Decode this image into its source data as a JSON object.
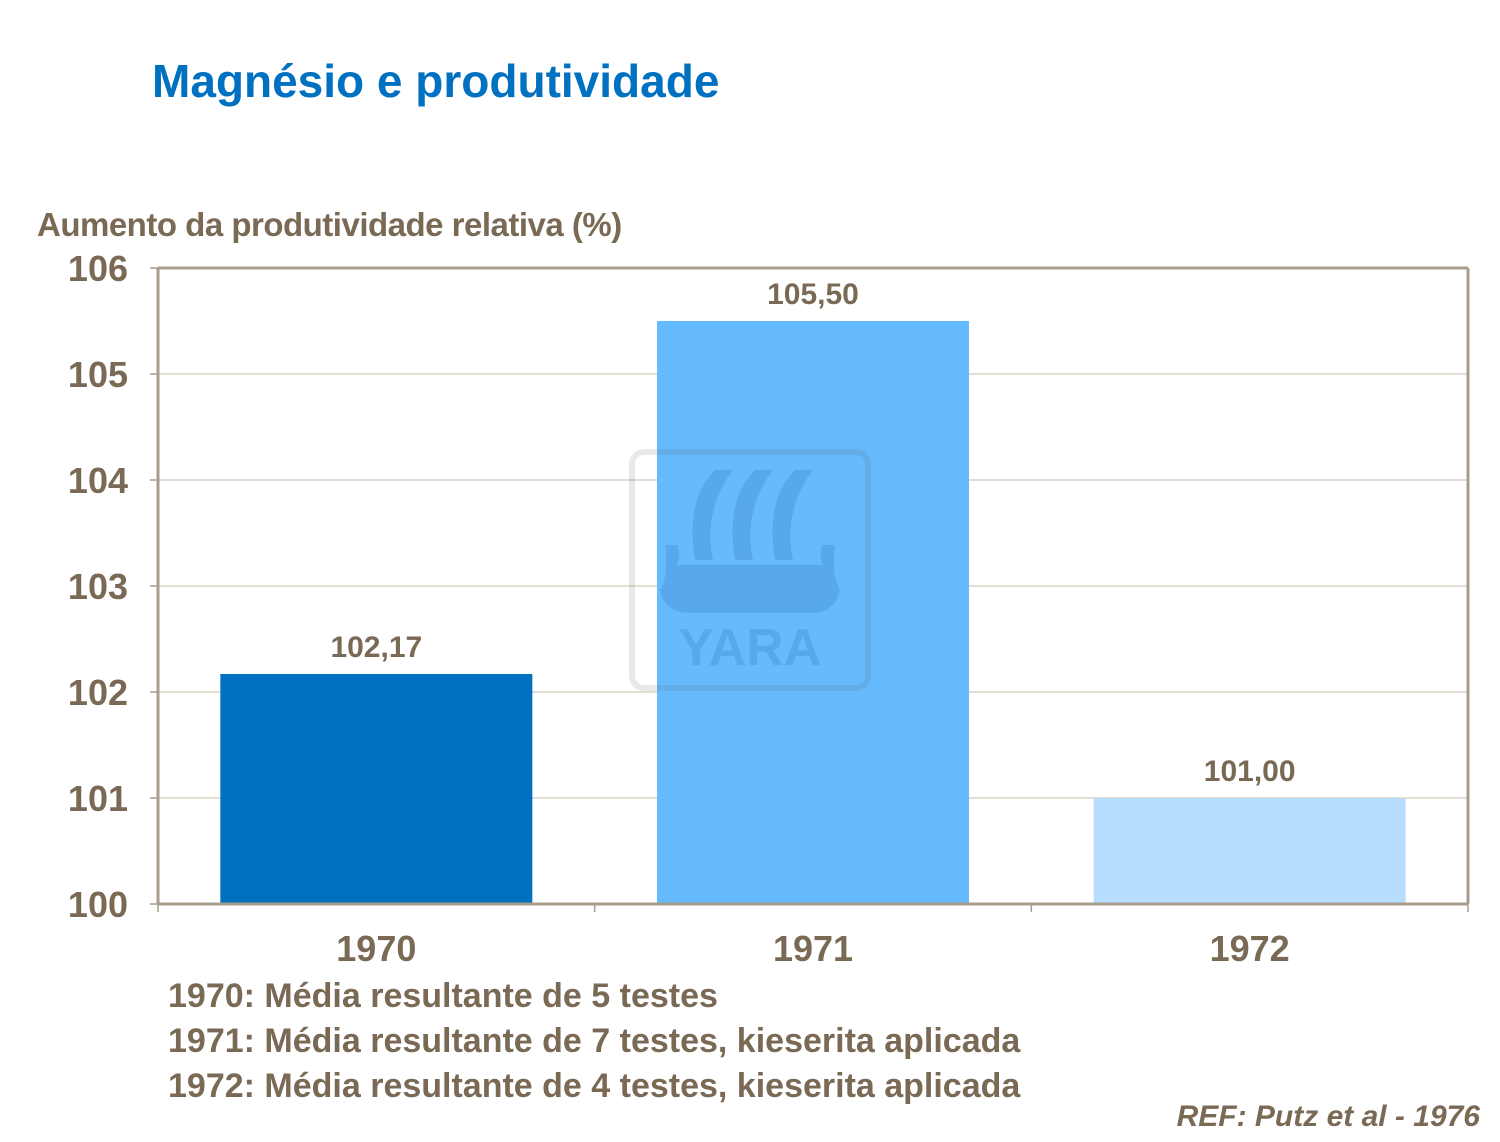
{
  "title": "Magnésio e produtividade",
  "chart_data": {
    "type": "bar",
    "title": "Magnésio e produtividade",
    "ylabel": "Aumento da produtividade relativa (%)",
    "xlabel": "",
    "categories": [
      "1970",
      "1971",
      "1972"
    ],
    "values": [
      102.17,
      105.5,
      101.0
    ],
    "data_labels": [
      "102,17",
      "105,50",
      "101,00"
    ],
    "bar_colors": [
      "#0070C0",
      "#66BBFF",
      "#B8DEFF"
    ],
    "ylim": [
      100,
      106
    ],
    "yticks": [
      100,
      101,
      102,
      103,
      104,
      105,
      106
    ],
    "grid": true,
    "legend": "none"
  },
  "notes": [
    "1970: Média resultante de 5 testes",
    "1971: Média resultante de 7 testes, kieserita aplicada",
    "1972: Média resultante de 4 testes, kieserita aplicada"
  ],
  "reference": "REF: Putz et al - 1976",
  "watermark": {
    "logo": "YARA",
    "icon": "viking-ship-icon"
  },
  "colors": {
    "title": "#0070C0",
    "text": "#7A6A55",
    "grid": "#C8BBA8",
    "axis": "#A89C8C"
  }
}
